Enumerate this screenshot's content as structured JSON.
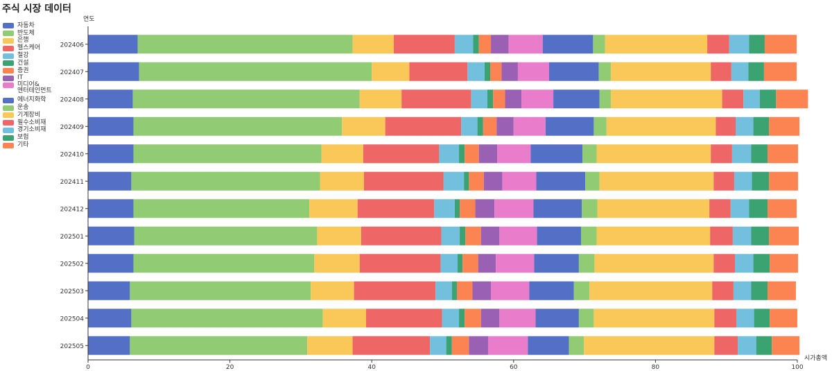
{
  "chart_data": {
    "type": "bar",
    "orientation": "horizontal",
    "stacked": true,
    "title": "주식 시장 데이터",
    "ylabel": "연도",
    "xlabel": "시가총액",
    "xlim": [
      0,
      100
    ],
    "xticks": [
      "0",
      "20",
      "40",
      "60",
      "80",
      "100"
    ],
    "grid": false,
    "legend_position": "left",
    "categories": [
      "202406",
      "202407",
      "202408",
      "202409",
      "202410",
      "202411",
      "202412",
      "202501",
      "202502",
      "202503",
      "202504",
      "202505"
    ],
    "series": [
      {
        "name": "자동차",
        "color": "#5470c6",
        "values": [
          7.0,
          7.2,
          6.3,
          6.4,
          6.4,
          6.1,
          6.4,
          6.5,
          6.4,
          5.9,
          6.1,
          5.9
        ]
      },
      {
        "name": "반도체",
        "color": "#91cc75",
        "values": [
          30.3,
          32.8,
          32.0,
          29.4,
          26.5,
          26.6,
          24.8,
          25.8,
          25.5,
          25.5,
          27.0,
          25.0
        ]
      },
      {
        "name": "은행",
        "color": "#fac858",
        "values": [
          5.8,
          5.3,
          5.9,
          6.1,
          5.9,
          6.2,
          6.8,
          6.2,
          6.4,
          6.1,
          6.1,
          6.4
        ]
      },
      {
        "name": "헬스케어",
        "color": "#ee6666",
        "values": [
          8.6,
          8.2,
          9.8,
          10.7,
          10.7,
          11.2,
          10.8,
          11.3,
          11.4,
          11.5,
          10.7,
          10.9
        ]
      },
      {
        "name": "철강",
        "color": "#73c0de",
        "values": [
          2.6,
          2.4,
          2.3,
          2.3,
          2.8,
          2.9,
          2.9,
          2.6,
          2.4,
          2.3,
          2.4,
          2.3
        ]
      },
      {
        "name": "건설",
        "color": "#3ba272",
        "values": [
          0.8,
          0.8,
          0.8,
          0.8,
          0.8,
          0.7,
          0.7,
          0.8,
          0.7,
          0.7,
          0.8,
          0.8
        ]
      },
      {
        "name": "증권",
        "color": "#fc8452",
        "values": [
          1.7,
          1.6,
          1.7,
          1.9,
          2.0,
          2.1,
          2.2,
          2.2,
          2.2,
          2.2,
          2.3,
          2.4
        ]
      },
      {
        "name": "IT",
        "color": "#9a60b4",
        "values": [
          2.5,
          2.3,
          2.3,
          2.4,
          2.6,
          2.6,
          2.7,
          2.6,
          2.5,
          2.6,
          2.6,
          2.7
        ]
      },
      {
        "name": "미디어&\n엔터테인먼트",
        "color": "#ea7ccc",
        "values": [
          4.8,
          4.4,
          4.5,
          4.5,
          4.7,
          4.8,
          5.5,
          5.3,
          5.4,
          5.4,
          5.1,
          5.6
        ]
      },
      {
        "name": "에너지화학",
        "color": "#5470c6",
        "values": [
          7.1,
          7.0,
          6.5,
          6.8,
          7.3,
          6.9,
          6.8,
          6.2,
          6.3,
          6.3,
          6.1,
          5.8
        ]
      },
      {
        "name": "운송",
        "color": "#91cc75",
        "values": [
          1.7,
          1.7,
          1.6,
          1.8,
          2.0,
          2.0,
          2.2,
          2.2,
          2.2,
          2.2,
          2.1,
          2.1
        ]
      },
      {
        "name": "기계장비",
        "color": "#fac858",
        "values": [
          14.4,
          14.1,
          15.7,
          15.4,
          16.1,
          16.1,
          15.8,
          16.0,
          16.8,
          17.3,
          17.0,
          18.4
        ]
      },
      {
        "name": "필수소비재",
        "color": "#ee6666",
        "values": [
          3.1,
          2.9,
          3.0,
          2.8,
          3.0,
          2.9,
          3.0,
          3.2,
          3.0,
          3.0,
          3.1,
          3.3
        ]
      },
      {
        "name": "경기소비재",
        "color": "#73c0de",
        "values": [
          2.8,
          2.4,
          2.3,
          2.5,
          2.7,
          2.5,
          2.6,
          2.6,
          2.6,
          2.5,
          2.5,
          2.6
        ]
      },
      {
        "name": "보험",
        "color": "#3ba272",
        "values": [
          2.2,
          2.2,
          2.3,
          2.2,
          2.3,
          2.4,
          2.6,
          2.5,
          2.3,
          2.3,
          2.2,
          2.2
        ]
      },
      {
        "name": "기타",
        "color": "#fc8452",
        "values": [
          4.5,
          4.6,
          4.5,
          4.3,
          4.3,
          4.1,
          4.1,
          4.2,
          4.0,
          4.0,
          3.9,
          3.9
        ]
      }
    ]
  }
}
